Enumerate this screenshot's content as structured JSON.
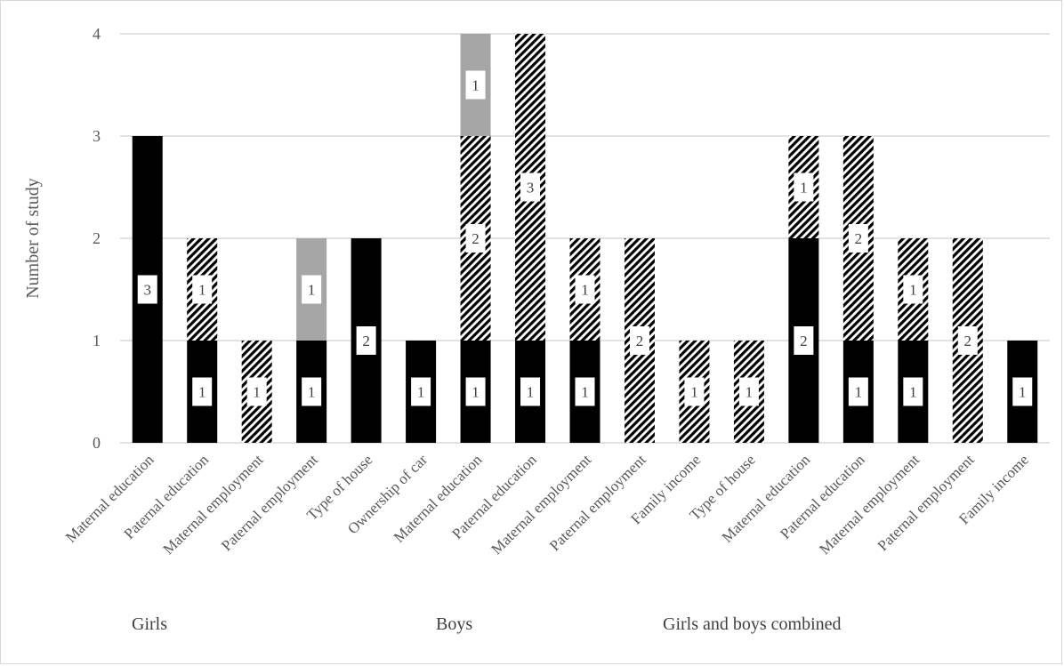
{
  "chart_data": {
    "type": "bar",
    "stacked": true,
    "ylabel": "Number of study",
    "ylim": [
      0,
      4
    ],
    "yticks": [
      0,
      1,
      2,
      3,
      4
    ],
    "grid": true,
    "categories": [
      "Maternal education",
      "Paternal education",
      "Maternal employment",
      "Paternal employment",
      "Type of house",
      "Ownership of car",
      "Maternal education",
      "Paternal education",
      "Maternal employment",
      "Paternal employment",
      "Family income",
      "Type of house",
      "Maternal education",
      "Paternal education",
      "Maternal employment",
      "Paternal employment",
      "Family income"
    ],
    "groups": [
      {
        "label": "Girls",
        "start": 0,
        "end": 5
      },
      {
        "label": "Boys",
        "start": 6,
        "end": 11
      },
      {
        "label": "Girls and boys combined",
        "start": 12,
        "end": 16
      }
    ],
    "series": [
      {
        "pattern": "solid-black",
        "values": [
          3,
          1,
          0,
          1,
          2,
          1,
          1,
          1,
          1,
          0,
          0,
          0,
          2,
          1,
          1,
          0,
          1
        ]
      },
      {
        "pattern": "diagonal-hatch",
        "values": [
          0,
          1,
          1,
          0,
          0,
          0,
          2,
          3,
          1,
          2,
          1,
          1,
          1,
          2,
          1,
          2,
          0
        ]
      },
      {
        "pattern": "solid-gray",
        "values": [
          0,
          0,
          0,
          1,
          0,
          0,
          1,
          0,
          0,
          0,
          0,
          0,
          0,
          0,
          0,
          0,
          0
        ]
      }
    ],
    "colors": {
      "solid-black": "#000000",
      "solid-gray": "#a6a6a6",
      "hatch": "#000000",
      "grid": "#d9d9d9"
    }
  }
}
